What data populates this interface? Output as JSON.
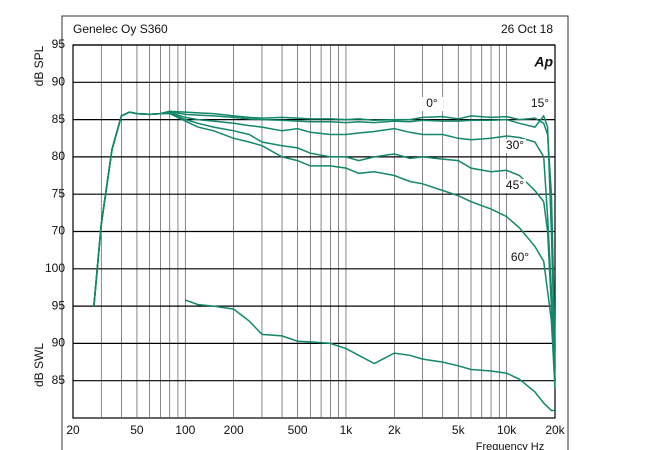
{
  "chart_data": {
    "type": "line",
    "title": "Genelec Oy S360",
    "date": "26 Oct 18",
    "logo": "Ap",
    "y_label": "dB SPL",
    "y2_label": "dB SWL",
    "x_label": "Frequency Hz",
    "log_x": true,
    "xlim": [
      20,
      20000
    ],
    "xticks": [
      20,
      50,
      100,
      200,
      500,
      {
        "value": 1000,
        "label": "1k"
      },
      {
        "value": 2000,
        "label": "2k"
      },
      {
        "value": 5000,
        "label": "5k"
      },
      {
        "value": 10000,
        "label": "10k"
      },
      {
        "value": 20000,
        "label": "20k"
      }
    ],
    "xgrid": [
      30,
      40,
      50,
      60,
      70,
      80,
      90,
      100,
      200,
      300,
      400,
      500,
      600,
      700,
      800,
      900,
      1000,
      2000,
      3000,
      4000,
      5000,
      6000,
      7000,
      8000,
      9000,
      10000
    ],
    "ylim": [
      45,
      95
    ],
    "yticks": [
      70,
      75,
      80,
      85,
      90,
      95
    ],
    "y2lim": [
      80,
      130
    ],
    "y2ticks": [
      85,
      90,
      95,
      100
    ],
    "x": [
      27,
      30,
      35,
      40,
      45,
      50,
      60,
      70,
      80,
      100,
      120,
      150,
      200,
      250,
      300,
      400,
      500,
      600,
      800,
      1000,
      1200,
      1500,
      2000,
      2500,
      3000,
      4000,
      5000,
      6000,
      8000,
      10000,
      12000,
      15000,
      17000,
      18000,
      19000,
      20000
    ],
    "series": [
      {
        "name": "0°",
        "color": "#13876a",
        "values": [
          60,
          71,
          81,
          85.5,
          86,
          85.8,
          85.7,
          85.8,
          86.1,
          86,
          85.9,
          85.8,
          85.5,
          85.3,
          85.2,
          85.3,
          85.2,
          85.1,
          85.1,
          85,
          85.1,
          84.9,
          85,
          85,
          85.3,
          85.4,
          85.1,
          85.5,
          85.3,
          85.4,
          85,
          85.2,
          84.5,
          83,
          75,
          55
        ]
      },
      {
        "name": "15°",
        "color": "#13876a",
        "values": [
          60,
          71,
          81,
          85.5,
          86,
          85.8,
          85.7,
          85.8,
          86.1,
          85.7,
          85.6,
          85.5,
          85.3,
          85.1,
          85,
          84.9,
          84.8,
          84.7,
          84.7,
          84.6,
          84.7,
          84.6,
          84.8,
          84.7,
          84.9,
          84.8,
          84.8,
          84.9,
          84.9,
          85,
          84.5,
          84,
          85.5,
          84,
          70,
          52
        ]
      },
      {
        "name": "30°",
        "color": "#13876a",
        "values": [
          60,
          71,
          81,
          85.5,
          86,
          85.8,
          85.7,
          85.8,
          86,
          85.3,
          85,
          84.8,
          84.5,
          84.2,
          84,
          83.5,
          83.8,
          83.3,
          83,
          83,
          83.2,
          83.4,
          83.8,
          83.3,
          83,
          83,
          82.5,
          82.3,
          82.5,
          82.8,
          82.6,
          82,
          80,
          72,
          62,
          50
        ]
      },
      {
        "name": "45°",
        "color": "#13876a",
        "values": [
          60,
          71,
          81,
          85.5,
          86,
          85.8,
          85.7,
          85.8,
          85.9,
          85,
          84.5,
          84,
          83.5,
          83,
          82,
          81.5,
          81.2,
          80.5,
          80,
          80,
          79.5,
          80,
          80.4,
          79.8,
          80,
          79.7,
          79.5,
          78.5,
          78,
          78.2,
          77.5,
          75.5,
          74,
          70,
          60,
          50
        ]
      },
      {
        "name": "60°",
        "color": "#13876a",
        "values": [
          60,
          71,
          81,
          85.5,
          86,
          85.8,
          85.7,
          85.8,
          85.8,
          84.8,
          84,
          83.5,
          82.5,
          82,
          81.5,
          80,
          79.5,
          78.8,
          78.8,
          78.5,
          77.8,
          78,
          77.5,
          76.7,
          76.4,
          75.5,
          74.8,
          74,
          73,
          72,
          70.5,
          68,
          66,
          62,
          58,
          49
        ]
      },
      {
        "color": "#13876a",
        "axis": "y2",
        "values": [
          null,
          null,
          null,
          null,
          null,
          null,
          null,
          null,
          null,
          95.8,
          95.2,
          95,
          94.6,
          93,
          91.2,
          91,
          90.3,
          90.2,
          90,
          89.3,
          88.4,
          87.3,
          88.7,
          88.4,
          87.9,
          87.5,
          87,
          86.5,
          86.3,
          86,
          85.2,
          83.5,
          82,
          81.5,
          81,
          81
        ]
      }
    ]
  }
}
